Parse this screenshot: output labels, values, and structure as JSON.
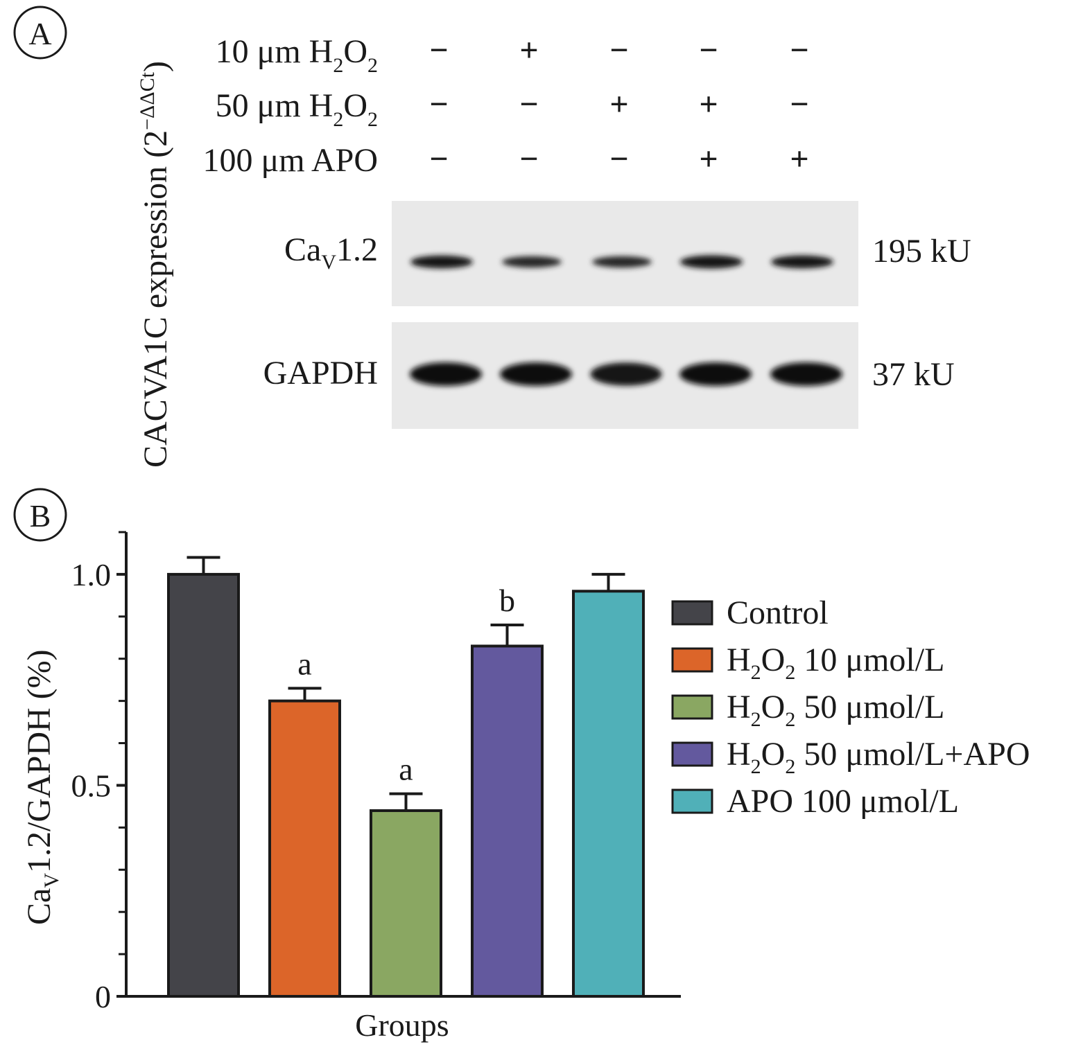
{
  "panel_a": {
    "label": "A",
    "side_label_main": "CACVA1C expression (2",
    "side_label_sup": "−ΔΔCt",
    "side_label_close": ")",
    "conditions": [
      {
        "pre": "10 μm H",
        "s1": "2",
        "mid": "O",
        "s2": "2",
        "signs": [
          "−",
          "+",
          "−",
          "−",
          "−"
        ]
      },
      {
        "pre": "50 μm H",
        "s1": "2",
        "mid": "O",
        "s2": "2",
        "signs": [
          "−",
          "−",
          "+",
          "+",
          "−"
        ]
      },
      {
        "pre": "100 μm APO",
        "s1": "",
        "mid": "",
        "s2": "",
        "signs": [
          "−",
          "−",
          "−",
          "+",
          "+"
        ]
      }
    ],
    "blots": [
      {
        "name_main": "Ca",
        "name_sub": "V",
        "name_rest": "1.2",
        "size": "195 kU",
        "intensity": [
          0.85,
          0.55,
          0.55,
          0.9,
          0.85
        ]
      },
      {
        "name_main": "GAPDH",
        "name_sub": "",
        "name_rest": "",
        "size": "37 kU",
        "intensity": [
          1.0,
          1.0,
          0.95,
          1.0,
          1.0
        ]
      }
    ]
  },
  "panel_b": {
    "label": "B"
  },
  "chart_data": {
    "type": "bar",
    "categories": [
      "Control",
      "H2O2 10 μmol/L",
      "H2O2 50 μmol/L",
      "H2O2 50 μmol/L+APO",
      "APO 100 μmol/L"
    ],
    "values": [
      1.0,
      0.7,
      0.44,
      0.83,
      0.96
    ],
    "errors": [
      0.04,
      0.03,
      0.04,
      0.05,
      0.04
    ],
    "significance": [
      "",
      "a",
      "a",
      "b",
      ""
    ],
    "colors": [
      "#444449",
      "#dc6529",
      "#8aa762",
      "#63599e",
      "#50b0b8"
    ],
    "xlabel": "Groups",
    "ylabel_main": "Ca",
    "ylabel_sub": "V",
    "ylabel_rest": "1.2/GAPDH (%)",
    "ylim": [
      0,
      1.1
    ],
    "yticks": [
      0,
      0.5,
      1.0
    ],
    "ytick_labels": [
      "0",
      "0.5",
      "1.0"
    ],
    "minor_tick_step": 0.1,
    "legend_position": "right",
    "legend": [
      {
        "pre": "Control",
        "s1": "",
        "mid": "",
        "s2": "",
        "post": ""
      },
      {
        "pre": "H",
        "s1": "2",
        "mid": "O",
        "s2": "2",
        "post": " 10 μmol/L"
      },
      {
        "pre": "H",
        "s1": "2",
        "mid": "O",
        "s2": "2",
        "post": " 50 μmol/L"
      },
      {
        "pre": "H",
        "s1": "2",
        "mid": "O",
        "s2": "2",
        "post": " 50 μmol/L+APO"
      },
      {
        "pre": "APO 100 μmol/L",
        "s1": "",
        "mid": "",
        "s2": "",
        "post": ""
      }
    ]
  }
}
